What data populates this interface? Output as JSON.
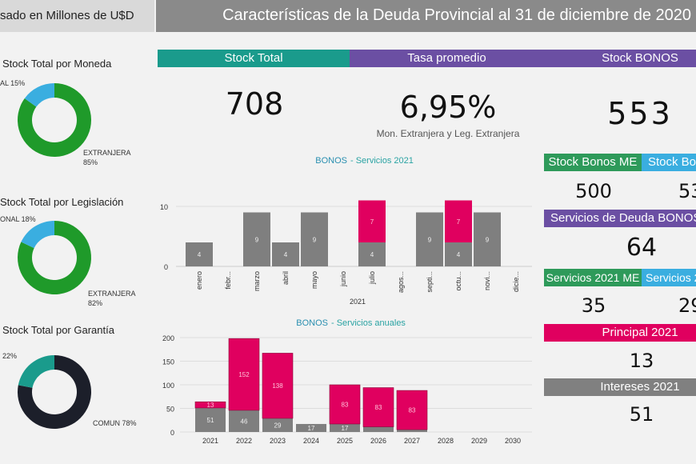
{
  "header": {
    "left_note": "sado en Millones de U$D",
    "title": "Características de la Deuda Provincial al 31 de diciembre de 2020"
  },
  "kpis": {
    "stock_total": {
      "label": "Stock Total",
      "value": "708"
    },
    "tasa": {
      "label": "Tasa promedio",
      "value": "6,95%",
      "note": "Mon. Extranjera y Leg. Extranjera"
    },
    "stock_bonos": {
      "label": "Stock BONOS",
      "value": "553"
    }
  },
  "right": {
    "bonos_me": {
      "label": "Stock Bonos ME",
      "value": "500"
    },
    "bonos_other": {
      "label": "Stock Bo",
      "value": "53"
    },
    "servicios": {
      "label": "Servicios de Deuda BONOS",
      "value": "64"
    },
    "serv_me": {
      "label": "Servicios 2021 ME",
      "value": "35"
    },
    "serv_other": {
      "label": "Servicios 2",
      "value": "29"
    },
    "principal": {
      "label": "Principal 2021",
      "value": "13"
    },
    "intereses": {
      "label": "Intereses 2021",
      "value": "51"
    }
  },
  "colors": {
    "teal": "#1a9b8c",
    "purple": "#6b4fa3",
    "green": "#2e9a5a",
    "blue": "#3aaee0",
    "pink": "#e0005f",
    "gray": "#7f7f7f",
    "darkgreen": "#1f9a2a",
    "navy": "#1c1f2a"
  },
  "chart_data": [
    {
      "type": "pie",
      "title": "Stock Total por Moneda",
      "slices": [
        {
          "label": "EXTRANJERA",
          "value": 85,
          "text": "EXTRANJERA",
          "pct": "85%"
        },
        {
          "label": "NACIONAL",
          "value": 15,
          "text": "AL 15%"
        }
      ]
    },
    {
      "type": "pie",
      "title": "Stock Total por Legislación",
      "slices": [
        {
          "label": "EXTRANJERA",
          "value": 82,
          "text": "EXTRANJERA",
          "pct": "82%"
        },
        {
          "label": "NACIONAL",
          "value": 18,
          "text": "ONAL 18%"
        }
      ]
    },
    {
      "type": "pie",
      "title": "Stock Total por Garantía",
      "slices": [
        {
          "label": "COMUN",
          "value": 78,
          "text": "COMUN 78%"
        },
        {
          "label": "",
          "value": 22,
          "text": "22%"
        }
      ]
    },
    {
      "type": "bar",
      "stacked": true,
      "title": "BONOS - Servicios 2021",
      "title_parts": [
        "BONOS",
        "- Servicios 2021"
      ],
      "xlabel": "2021",
      "ylim": [
        0,
        12
      ],
      "yticks": [
        0,
        10
      ],
      "categories": [
        "enero",
        "febr...",
        "marzo",
        "abril",
        "mayo",
        "junio",
        "julio",
        "agos...",
        "septi...",
        "octu...",
        "novi...",
        "dicie..."
      ],
      "series": [
        {
          "values": [
            4,
            0,
            9,
            4,
            9,
            0,
            4,
            0,
            9,
            4,
            9,
            0
          ]
        },
        {
          "values": [
            0,
            0,
            0,
            0,
            0,
            0,
            7,
            0,
            0,
            7,
            0,
            0
          ]
        }
      ]
    },
    {
      "type": "bar",
      "stacked": true,
      "title": "BONOS - Servicios anuales",
      "title_parts": [
        "BONOS",
        "- Servicios anuales"
      ],
      "ylim": [
        0,
        200
      ],
      "yticks": [
        0,
        50,
        100,
        150,
        200
      ],
      "categories": [
        "2021",
        "2022",
        "2023",
        "2024",
        "2025",
        "2026",
        "2027",
        "2028",
        "2029",
        "2030"
      ],
      "series": [
        {
          "values": [
            51,
            46,
            29,
            17,
            17,
            11,
            5,
            0,
            0,
            0
          ],
          "labels": [
            "51",
            "46",
            "29",
            "17",
            "17",
            "",
            "",
            "",
            "",
            ""
          ]
        },
        {
          "values": [
            13,
            152,
            138,
            0,
            83,
            83,
            83,
            0,
            0,
            0
          ],
          "labels": [
            "13",
            "152",
            "138",
            "",
            "83",
            "83",
            "83",
            "",
            "",
            ""
          ]
        }
      ]
    }
  ]
}
